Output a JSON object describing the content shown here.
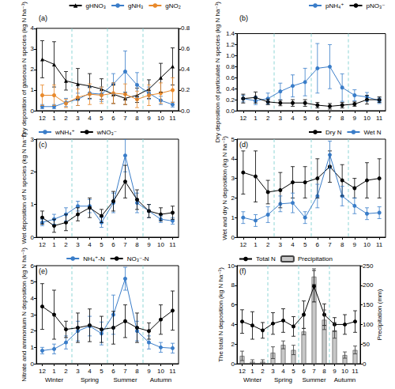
{
  "chart_data": [
    {
      "type": "line",
      "title": "(a)",
      "ylabel": "Dry deposition of gaseous N species (kg N ha⁻¹)",
      "categories": [
        "12",
        "1",
        "2",
        "3",
        "4",
        "5",
        "6",
        "7",
        "8",
        "9",
        "10",
        "11"
      ],
      "groups": [
        [
          "12",
          "1",
          "2"
        ],
        [
          "3",
          "4",
          "5"
        ],
        [
          "6",
          "7",
          "8"
        ],
        [
          "9",
          "10",
          "11"
        ]
      ],
      "ylim": [
        0,
        4
      ],
      "yticks": [
        0,
        1,
        2,
        3,
        4
      ],
      "y2lim": [
        0,
        0.8
      ],
      "y2ticks": [
        {
          "value": 0,
          "label": "0.0"
        },
        0.2,
        0.4,
        0.6,
        0.8
      ],
      "grid": false,
      "legend": "top-right",
      "series": [
        {
          "name": "gHNO₃",
          "color": "#000000",
          "marker": "triangle",
          "values": [
            2.5,
            2.25,
            1.45,
            1.3,
            1.2,
            1.05,
            0.8,
            0.6,
            0.75,
            1.05,
            1.6,
            2.15
          ],
          "errors": [
            0.9,
            1.1,
            0.45,
            0.75,
            0.6,
            0.5,
            0.45,
            0.3,
            0.35,
            0.45,
            0.7,
            0.9
          ]
        },
        {
          "name": "gNH₃",
          "color": "#3a7dc9",
          "marker": "circle",
          "values": [
            0.2,
            0.2,
            0.4,
            0.55,
            0.85,
            0.8,
            1.3,
            1.9,
            1.25,
            0.85,
            0.5,
            0.3
          ],
          "errors": [
            0.1,
            0.1,
            0.2,
            0.3,
            0.3,
            0.35,
            0.5,
            1.0,
            0.6,
            0.3,
            0.2,
            0.12
          ]
        },
        {
          "name": "gNO₂",
          "color": "#e8892b",
          "marker": "circle",
          "axis": "y2",
          "values": [
            0.15,
            0.15,
            0.07,
            0.13,
            0.16,
            0.15,
            0.17,
            0.16,
            0.11,
            0.15,
            0.17,
            0.2
          ],
          "errors": [
            0.1,
            0.1,
            0.04,
            0.08,
            0.1,
            0.08,
            0.1,
            0.1,
            0.08,
            0.1,
            0.1,
            0.12
          ]
        }
      ]
    },
    {
      "type": "line",
      "title": "(b)",
      "ylabel": "Dry deposition of particulate N species (kg N ha⁻¹)",
      "categories": [
        "12",
        "1",
        "2",
        "3",
        "4",
        "5",
        "6",
        "7",
        "8",
        "9",
        "10",
        "11"
      ],
      "groups": [
        [
          "12",
          "1",
          "2"
        ],
        [
          "3",
          "4",
          "5"
        ],
        [
          "6",
          "7",
          "8"
        ],
        [
          "9",
          "10",
          "11"
        ]
      ],
      "ylim": [
        0,
        1.4
      ],
      "yticks": [
        {
          "value": 0,
          "label": "0.0"
        },
        0.2,
        0.4,
        0.6,
        0.8,
        {
          "value": 1,
          "label": "1.0"
        },
        1.2,
        1.4
      ],
      "grid": false,
      "legend": "top-right",
      "series": [
        {
          "name": "pNH₄⁺",
          "color": "#3a7dc9",
          "marker": "circle",
          "values": [
            0.22,
            0.18,
            0.22,
            0.35,
            0.45,
            0.52,
            0.77,
            0.8,
            0.42,
            0.28,
            0.25,
            0.18
          ],
          "errors": [
            0.06,
            0.07,
            0.1,
            0.15,
            0.2,
            0.25,
            0.45,
            0.4,
            0.25,
            0.1,
            0.08,
            0.05
          ]
        },
        {
          "name": "pNO₃⁻",
          "color": "#000000",
          "marker": "circle",
          "values": [
            0.22,
            0.24,
            0.16,
            0.14,
            0.14,
            0.14,
            0.1,
            0.08,
            0.1,
            0.12,
            0.2,
            0.2
          ],
          "errors": [
            0.08,
            0.1,
            0.05,
            0.05,
            0.06,
            0.06,
            0.05,
            0.05,
            0.05,
            0.04,
            0.08,
            0.05
          ]
        }
      ]
    },
    {
      "type": "line",
      "title": "(c)",
      "ylabel": "Wet deposition of N species (kg N ha⁻¹)",
      "categories": [
        "12",
        "1",
        "2",
        "3",
        "4",
        "5",
        "6",
        "7",
        "8",
        "9",
        "10",
        "11"
      ],
      "groups": [
        [
          "12",
          "1",
          "2"
        ],
        [
          "3",
          "4",
          "5"
        ],
        [
          "6",
          "7",
          "8"
        ],
        [
          "9",
          "10",
          "11"
        ]
      ],
      "ylim": [
        0,
        3
      ],
      "yticks": [
        0,
        1,
        2,
        3
      ],
      "grid": false,
      "legend": "top-left",
      "series": [
        {
          "name": "wNH₄⁺",
          "color": "#3a7dc9",
          "marker": "circle",
          "values": [
            0.45,
            0.55,
            0.7,
            0.95,
            0.95,
            0.45,
            1.05,
            2.5,
            1.05,
            0.8,
            0.55,
            0.5
          ],
          "errors": [
            0.1,
            0.15,
            0.2,
            0.15,
            0.2,
            0.15,
            0.3,
            0.5,
            0.3,
            0.2,
            0.1,
            0.1
          ]
        },
        {
          "name": "wNO₃⁻",
          "color": "#000000",
          "marker": "circle",
          "values": [
            0.6,
            0.35,
            0.45,
            0.7,
            0.9,
            0.65,
            1.1,
            1.7,
            1.15,
            0.8,
            0.7,
            0.75
          ],
          "errors": [
            0.2,
            0.2,
            0.25,
            0.2,
            0.3,
            0.2,
            0.3,
            0.5,
            0.3,
            0.2,
            0.2,
            0.2
          ]
        }
      ]
    },
    {
      "type": "line",
      "title": "(d)",
      "ylabel": "Wet and dry N deposition (kg N ha⁻¹)",
      "categories": [
        "12",
        "1",
        "2",
        "3",
        "4",
        "5",
        "6",
        "7",
        "8",
        "9",
        "10",
        "11"
      ],
      "groups": [
        [
          "12",
          "1",
          "2"
        ],
        [
          "3",
          "4",
          "5"
        ],
        [
          "6",
          "7",
          "8"
        ],
        [
          "9",
          "10",
          "11"
        ]
      ],
      "ylim": [
        0,
        5
      ],
      "yticks": [
        0,
        1,
        2,
        3,
        4,
        5
      ],
      "grid": false,
      "legend": "top-right",
      "series": [
        {
          "name": "Dry N",
          "color": "#000000",
          "marker": "circle",
          "values": [
            3.3,
            3.1,
            2.3,
            2.4,
            2.8,
            2.8,
            3.0,
            3.6,
            2.9,
            2.5,
            2.9,
            3.0
          ],
          "errors": [
            1.1,
            1.3,
            0.6,
            0.9,
            0.8,
            0.8,
            1.0,
            0.8,
            0.8,
            0.5,
            0.9,
            1.0
          ]
        },
        {
          "name": "Wet N",
          "color": "#3a7dc9",
          "marker": "circle",
          "values": [
            1.0,
            0.85,
            1.15,
            1.7,
            1.75,
            1.0,
            2.1,
            4.2,
            2.1,
            1.6,
            1.2,
            1.25
          ],
          "errors": [
            0.3,
            0.3,
            0.4,
            0.4,
            0.5,
            0.3,
            0.6,
            0.7,
            0.5,
            0.4,
            0.3,
            0.3
          ]
        }
      ]
    },
    {
      "type": "line",
      "title": "(e)",
      "ylabel": "Nitrate and ammonium N deposition (kg N ha⁻¹)",
      "categories": [
        "12",
        "1",
        "2",
        "3",
        "4",
        "5",
        "6",
        "7",
        "8",
        "9",
        "10",
        "11"
      ],
      "groups": [
        [
          "12",
          "1",
          "2"
        ],
        [
          "3",
          "4",
          "5"
        ],
        [
          "6",
          "7",
          "8"
        ],
        [
          "9",
          "10",
          "11"
        ]
      ],
      "group_labels": [
        "Winter",
        "Spring",
        "Summer",
        "Autumn"
      ],
      "ylim": [
        0,
        6
      ],
      "yticks": [
        0,
        1,
        2,
        3,
        4,
        5,
        6
      ],
      "grid": false,
      "legend": "top-center",
      "series": [
        {
          "name": "NH₄⁺-N",
          "color": "#3a7dc9",
          "marker": "circle",
          "values": [
            0.8,
            0.9,
            1.3,
            2.0,
            2.3,
            1.85,
            3.0,
            5.2,
            2.0,
            1.3,
            1.0,
            0.95
          ],
          "errors": [
            0.2,
            0.3,
            0.4,
            0.6,
            0.6,
            0.7,
            1.2,
            0.7,
            0.6,
            0.4,
            0.3,
            0.3
          ]
        },
        {
          "name": "NO₃⁻-N",
          "color": "#000000",
          "marker": "circle",
          "values": [
            3.5,
            3.0,
            2.1,
            2.2,
            2.35,
            2.1,
            2.2,
            2.6,
            2.2,
            2.0,
            2.7,
            3.25
          ],
          "errors": [
            1.4,
            1.5,
            0.5,
            0.9,
            1.0,
            0.8,
            1.0,
            1.0,
            0.9,
            0.5,
            0.9,
            1.2
          ]
        }
      ]
    },
    {
      "type": "line",
      "title": "(f)",
      "ylabel": "The total N deposition (kg N ha⁻¹)",
      "y2label": "Precipitation (mm)",
      "categories": [
        "12",
        "1",
        "2",
        "3",
        "4",
        "5",
        "6",
        "7",
        "8",
        "9",
        "10",
        "11"
      ],
      "groups": [
        [
          "12",
          "1",
          "2"
        ],
        [
          "3",
          "4",
          "5"
        ],
        [
          "6",
          "7",
          "8"
        ],
        [
          "9",
          "10",
          "11"
        ]
      ],
      "group_labels": [
        "Winter",
        "Spring",
        "Summer",
        "Autumn"
      ],
      "ylim": [
        0,
        10
      ],
      "yticks": [
        0,
        2,
        4,
        6,
        8,
        10
      ],
      "y2lim": [
        0,
        250
      ],
      "y2ticks": [
        0,
        50,
        100,
        150,
        200,
        250
      ],
      "grid": false,
      "legend": "top-left",
      "series": [
        {
          "name": "Total N",
          "color": "#000000",
          "marker": "circle",
          "values": [
            4.3,
            3.9,
            3.4,
            4.1,
            4.4,
            3.8,
            5.0,
            7.9,
            5.0,
            4.0,
            4.0,
            4.3
          ],
          "errors": [
            1.2,
            1.4,
            0.8,
            1.1,
            1.2,
            1.0,
            1.4,
            1.6,
            1.1,
            0.7,
            1.0,
            1.1
          ]
        },
        {
          "name": "Precipitation",
          "type": "bar",
          "color": "#c8c8c8",
          "axis": "y2",
          "values": [
            20,
            5,
            5,
            28,
            48,
            35,
            82,
            222,
            112,
            85,
            22,
            35
          ],
          "errors": [
            12,
            5,
            5,
            15,
            10,
            12,
            8,
            20,
            25,
            20,
            8,
            10
          ]
        }
      ]
    }
  ]
}
